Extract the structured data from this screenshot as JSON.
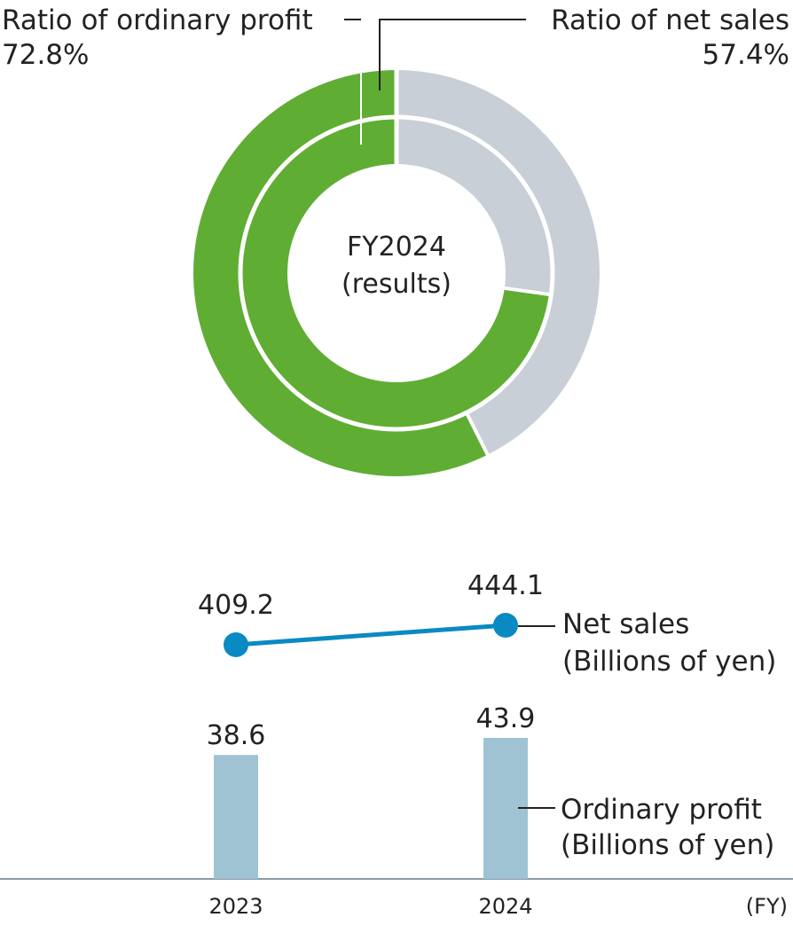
{
  "colors": {
    "green": "#60ad34",
    "gray": "#c8cfd6",
    "line": "#0a8ac3",
    "bar": "#9fc3d3",
    "axis": "#8a9aa8",
    "text": "#222222"
  },
  "chart_data": [
    {
      "type": "pie",
      "style": "nested-donut",
      "center_label": [
        "FY2024",
        "(results)"
      ],
      "rings": [
        {
          "ring": "outer",
          "name": "Ratio of net sales",
          "label": [
            "Ratio of net sales",
            "57.4%"
          ],
          "value": 57.4
        },
        {
          "ring": "inner",
          "name": "Ratio of ordinary profit",
          "label": [
            "Ratio of ordinary profit",
            "72.8%"
          ],
          "value": 72.8
        }
      ]
    },
    {
      "type": "line",
      "name": "Net sales",
      "label": [
        "Net sales",
        "(Billions of yen)"
      ],
      "x": [
        "2023",
        "2024"
      ],
      "values": [
        409.2,
        444.1
      ],
      "value_labels": [
        "409.2",
        "444.1"
      ]
    },
    {
      "type": "bar",
      "name": "Ordinary profit",
      "label": [
        "Ordinary profit",
        "(Billions of yen)"
      ],
      "categories": [
        "2023",
        "2024"
      ],
      "values": [
        38.6,
        43.9
      ],
      "value_labels": [
        "38.6",
        "43.9"
      ],
      "xlabel": "(FY)"
    }
  ]
}
